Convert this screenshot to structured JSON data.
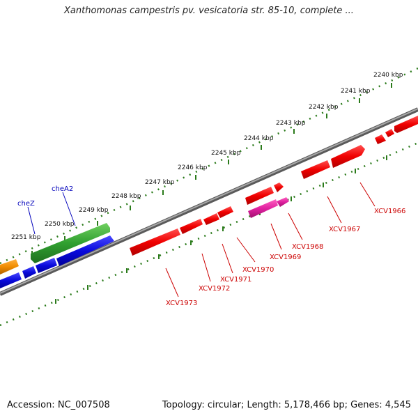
{
  "header": {
    "title": "Xanthomonas campestris pv. vesicatoria str. 85-10, complete ..."
  },
  "footer": {
    "accession": "Accession: NC_007508",
    "summary": "Topology: circular; Length: 5,178,466 bp; Genes: 4,545"
  },
  "colors": {
    "backbone": "#7f7f7f",
    "ruler_dots": "#2a7a1a",
    "red_gene": "#e60000",
    "magenta_gene": "#e0209a",
    "green_gene": "#2fa02a",
    "blue_gene": "#0a0adc",
    "orange_gene": "#f08c00",
    "red_label": "#cc0000",
    "blue_label": "#0000bb"
  },
  "ruler_labels": [
    "2240 kbp",
    "2241 kbp",
    "2242 kbp",
    "2243 kbp",
    "2244 kbp",
    "2245 kbp",
    "2246 kbp",
    "2247 kbp",
    "2248 kbp",
    "2249 kbp",
    "2250 kbp",
    "2251 kbp"
  ],
  "gene_labels": {
    "red": [
      "XCV1966",
      "XCV1967",
      "XCV1968",
      "XCV1969",
      "XCV1970",
      "XCV1971",
      "XCV1972",
      "XCV1973"
    ],
    "blue": [
      "cheA2",
      "cheZ"
    ]
  }
}
